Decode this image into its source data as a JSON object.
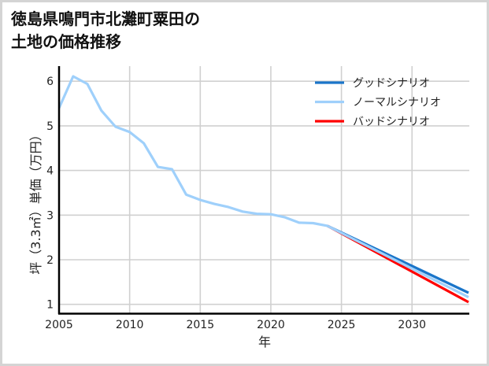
{
  "title": {
    "line1": "徳島県鳴門市北灘町粟田の",
    "line2": "土地の価格推移"
  },
  "chart_data": {
    "type": "line",
    "title": "徳島県鳴門市北灘町粟田の土地の価格推移",
    "xlabel": "年",
    "ylabel": "坪（3.3㎡）単価（万円）",
    "xlim": [
      2005,
      2034
    ],
    "ylim": [
      0.8,
      6.4
    ],
    "xticks": [
      2005,
      2010,
      2015,
      2020,
      2025,
      2030
    ],
    "yticks": [
      1,
      2,
      3,
      4,
      5,
      6
    ],
    "grid": true,
    "legend_position": "upper right",
    "series": [
      {
        "name": "グッドシナリオ",
        "color": "#1a75c9",
        "x": [
          2024,
          2034
        ],
        "values": [
          2.76,
          1.26
        ]
      },
      {
        "name": "ノーマルシナリオ",
        "color": "#9fd0fb",
        "x": [
          2005,
          2006,
          2007,
          2008,
          2009,
          2010,
          2011,
          2012,
          2013,
          2014,
          2015,
          2016,
          2017,
          2018,
          2019,
          2020,
          2021,
          2022,
          2023,
          2024,
          2034
        ],
        "values": [
          5.4,
          6.11,
          5.94,
          5.34,
          4.98,
          4.86,
          4.61,
          4.08,
          4.03,
          3.46,
          3.34,
          3.25,
          3.18,
          3.08,
          3.03,
          3.02,
          2.95,
          2.83,
          2.82,
          2.76,
          1.16
        ]
      },
      {
        "name": "バッドシナリオ",
        "color": "#ff0000",
        "x": [
          2024,
          2034
        ],
        "values": [
          2.76,
          1.05
        ]
      }
    ]
  },
  "legend": {
    "items": [
      {
        "label": "グッドシナリオ",
        "color": "#1a75c9"
      },
      {
        "label": "ノーマルシナリオ",
        "color": "#9fd0fb"
      },
      {
        "label": "バッドシナリオ",
        "color": "#ff0000"
      }
    ]
  },
  "axes": {
    "xlabel": "年",
    "ylabel": "坪（3.3㎡）単価（万円）",
    "xticks": [
      "2005",
      "2010",
      "2015",
      "2020",
      "2025",
      "2030"
    ],
    "yticks": [
      "1",
      "2",
      "3",
      "4",
      "5",
      "6"
    ]
  }
}
